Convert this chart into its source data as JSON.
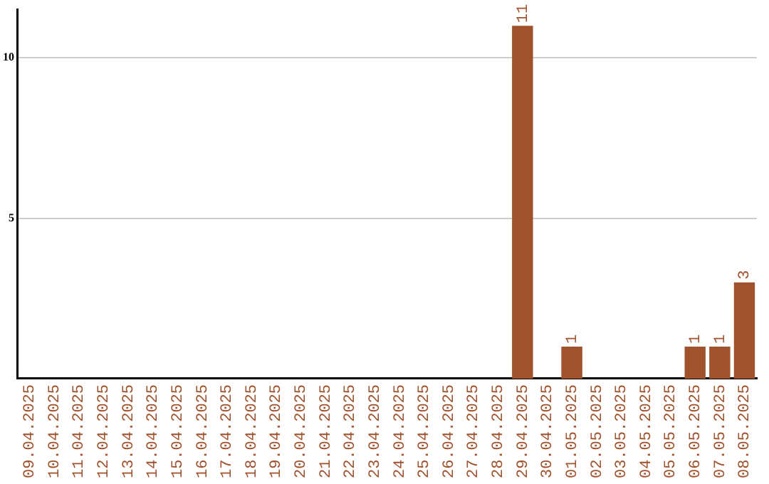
{
  "chart_data": {
    "type": "bar",
    "categories": [
      "09.04.2025",
      "10.04.2025",
      "11.04.2025",
      "12.04.2025",
      "13.04.2025",
      "14.04.2025",
      "15.04.2025",
      "16.04.2025",
      "17.04.2025",
      "18.04.2025",
      "19.04.2025",
      "20.04.2025",
      "21.04.2025",
      "22.04.2025",
      "23.04.2025",
      "24.04.2025",
      "25.04.2025",
      "26.04.2025",
      "27.04.2025",
      "28.04.2025",
      "29.04.2025",
      "30.04.2025",
      "01.05.2025",
      "02.05.2025",
      "03.05.2025",
      "04.05.2025",
      "05.05.2025",
      "06.05.2025",
      "07.05.2025",
      "08.05.2025"
    ],
    "values": [
      0,
      0,
      0,
      0,
      0,
      0,
      0,
      0,
      0,
      0,
      0,
      0,
      0,
      0,
      0,
      0,
      0,
      0,
      0,
      0,
      11,
      0,
      1,
      0,
      0,
      0,
      0,
      1,
      1,
      3
    ],
    "value_labels": [
      null,
      null,
      null,
      null,
      null,
      null,
      null,
      null,
      null,
      null,
      null,
      null,
      null,
      null,
      null,
      null,
      null,
      null,
      null,
      null,
      "11",
      null,
      "1",
      null,
      null,
      null,
      null,
      "1",
      "1",
      "3"
    ],
    "color": "#a0522d",
    "ylim": [
      0,
      11.5
    ],
    "yticks": [
      5,
      10
    ],
    "grid": "y"
  }
}
